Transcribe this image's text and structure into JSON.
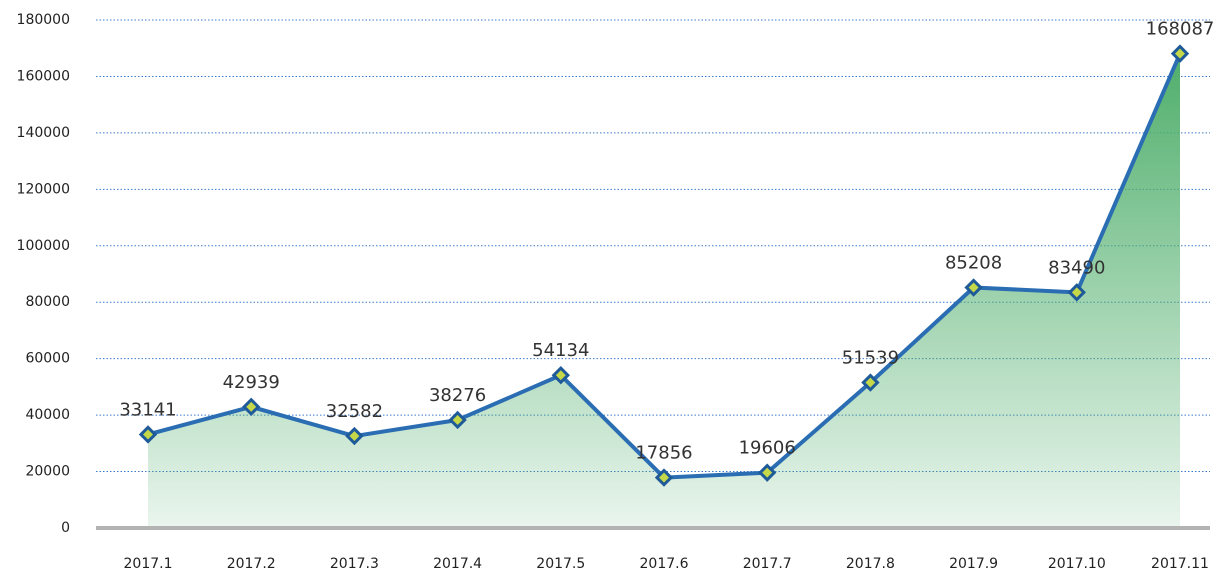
{
  "chart_data": {
    "type": "area",
    "categories": [
      "2017.1",
      "2017.2",
      "2017.3",
      "2017.4",
      "2017.5",
      "2017.6",
      "2017.7",
      "2017.8",
      "2017.9",
      "2017.10",
      "2017.11"
    ],
    "values": [
      33141,
      42939,
      32582,
      38276,
      54134,
      17856,
      19606,
      51539,
      85208,
      83490,
      168087
    ],
    "color": "#2a6db3",
    "fill_color": "#4fae6b",
    "ylim": [
      0,
      180000
    ],
    "yticks": [
      0,
      20000,
      40000,
      60000,
      80000,
      100000,
      120000,
      140000,
      160000,
      180000
    ],
    "grid": true
  }
}
